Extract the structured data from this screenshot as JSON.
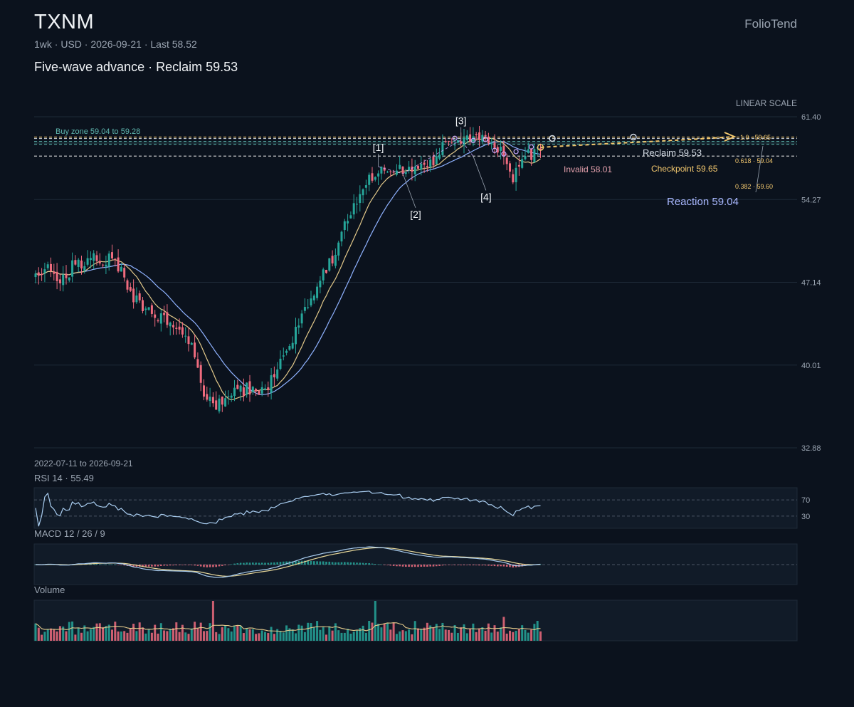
{
  "header": {
    "ticker": "TXNM",
    "meta": "1wk · USD · 2026-09-21 · Last 58.52",
    "subtitle": "Five-wave advance · Reclaim 59.53",
    "brand": "FolioTend"
  },
  "colors": {
    "background": "#0b121d",
    "up": "#26a69a",
    "down": "#ef6b7e",
    "ma_fast": "#e3c98a",
    "ma_slow": "#8fb2ff",
    "rsi": "#a9cdf0",
    "macd_signal": "#e8d89a",
    "macd_line": "#a9cdf0",
    "volume_ma": "#e3c98a",
    "zone": "#5fb8b0",
    "checkpoint": "#f2c76e",
    "invalid": "#e3a0ac",
    "reaction": "#a9b8ff",
    "wave_path": "#c9a9ff"
  },
  "chart_data": {
    "type": "candlestick",
    "interval": "1wk",
    "currency": "USD",
    "date_range_label": "2022-07-11 to 2026-09-21",
    "start_date": "2022-07-11",
    "end_date": "2026-09-21",
    "scale_label": "LINEAR SCALE",
    "y_ticks": [
      61.4,
      54.27,
      47.14,
      40.01,
      32.88
    ],
    "ylim": [
      32.88,
      61.4
    ],
    "grid": true,
    "last": 58.52,
    "anchors": [
      [
        0,
        48.0
      ],
      [
        4,
        48.6
      ],
      [
        8,
        46.9
      ],
      [
        12,
        48.5
      ],
      [
        18,
        49.2
      ],
      [
        24,
        49.1
      ],
      [
        28,
        48.2
      ],
      [
        30,
        46.2
      ],
      [
        36,
        44.8
      ],
      [
        42,
        43.8
      ],
      [
        48,
        42.8
      ],
      [
        52,
        40.9
      ],
      [
        54,
        38.4
      ],
      [
        56,
        37.0
      ],
      [
        60,
        36.6
      ],
      [
        64,
        37.7
      ],
      [
        70,
        38.0
      ],
      [
        74,
        37.6
      ],
      [
        78,
        39.2
      ],
      [
        82,
        41.2
      ],
      [
        86,
        43.7
      ],
      [
        90,
        45.4
      ],
      [
        94,
        47.8
      ],
      [
        98,
        49.6
      ],
      [
        102,
        52.7
      ],
      [
        106,
        54.5
      ],
      [
        110,
        56.4
      ],
      [
        114,
        56.9
      ],
      [
        118,
        56.8
      ],
      [
        124,
        57.1
      ],
      [
        130,
        57.6
      ],
      [
        134,
        59.2
      ],
      [
        138,
        59.5
      ],
      [
        142,
        59.2
      ],
      [
        146,
        59.4
      ],
      [
        150,
        59.1
      ],
      [
        152,
        58.6
      ],
      [
        154,
        56.8
      ],
      [
        156,
        56.2
      ],
      [
        158,
        57.6
      ],
      [
        160,
        58.0
      ],
      [
        164,
        58.3
      ]
    ],
    "waves": [
      {
        "label": "[1]",
        "i": 112,
        "price": 57.1,
        "pos": "above"
      },
      {
        "label": "[2]",
        "i": 120,
        "price": 56.5,
        "pos": "below"
      },
      {
        "label": "[3]",
        "i": 139,
        "price": 59.4,
        "pos": "above"
      },
      {
        "label": "[4]",
        "i": 143,
        "price": 58.0,
        "pos": "below"
      }
    ],
    "levels": {
      "buy_zone": {
        "label": "Buy zone 59.04 to 59.28",
        "low": 59.04,
        "high": 59.28
      },
      "reclaim": {
        "label": "Reclaim 59.53",
        "price": 59.53
      },
      "checkpoint": {
        "label": "Checkpoint 59.65",
        "price": 59.65
      },
      "invalid": {
        "label": "Invalid 58.01",
        "price": 58.01
      },
      "reaction": {
        "label": "Reaction 59.04",
        "price": 59.04
      }
    },
    "fib_labels": [
      {
        "label": "1.0 · 59.65",
        "price": 59.65
      },
      {
        "label": "0.618 · 59.04",
        "price": 59.04
      },
      {
        "label": "0.382 · 59.60",
        "price": 59.6
      }
    ],
    "rsi": {
      "label": "RSI 14 · 55.49",
      "value": 55.49,
      "levels": [
        70,
        30
      ],
      "ylim": [
        0,
        100
      ]
    },
    "macd": {
      "label": "MACD 12 / 26 / 9"
    },
    "volume": {
      "label": "Volume"
    }
  }
}
